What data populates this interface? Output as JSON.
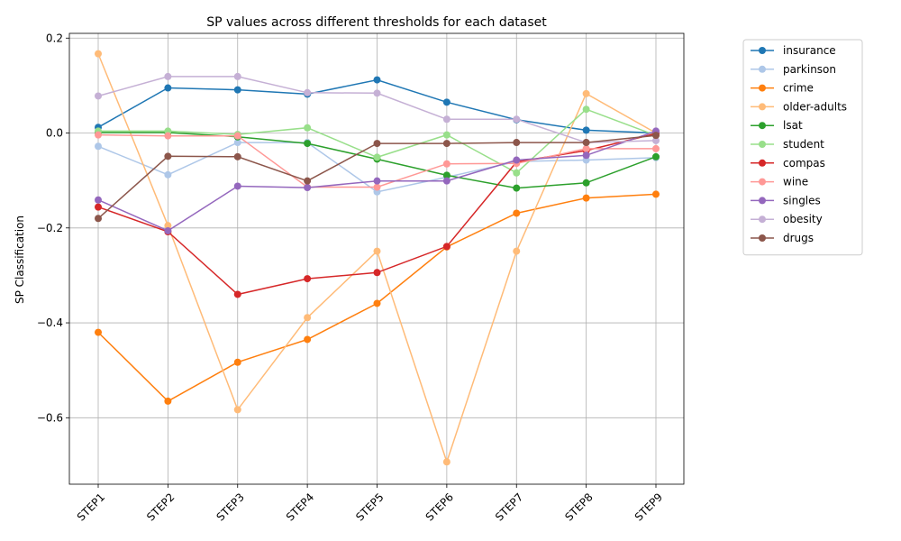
{
  "chart_data": {
    "type": "line",
    "title": "SP values across different thresholds for each dataset",
    "xlabel": "",
    "ylabel": "SP Classification",
    "categories": [
      "STEP1",
      "STEP2",
      "STEP3",
      "STEP4",
      "STEP5",
      "STEP6",
      "STEP7",
      "STEP8",
      "STEP9"
    ],
    "ylim": [
      -0.74,
      0.21
    ],
    "yticks": [
      0.2,
      0.0,
      -0.2,
      -0.4,
      -0.6
    ],
    "ytick_labels": [
      "0.2",
      "0.0",
      "−0.2",
      "−0.4",
      "−0.6"
    ],
    "grid": true,
    "legend_position": "outside-right",
    "series": [
      {
        "name": "insurance",
        "color": "#1f77b4",
        "values": [
          0.012,
          0.095,
          0.091,
          0.082,
          0.112,
          0.065,
          0.028,
          0.006,
          0.0
        ]
      },
      {
        "name": "parkinson",
        "color": "#aec7e8",
        "values": [
          -0.028,
          -0.088,
          -0.02,
          -0.02,
          -0.124,
          -0.093,
          -0.06,
          -0.057,
          -0.052
        ]
      },
      {
        "name": "crime",
        "color": "#ff7f0e",
        "values": [
          -0.42,
          -0.565,
          -0.483,
          -0.435,
          -0.359,
          -0.24,
          -0.169,
          -0.137,
          -0.129
        ]
      },
      {
        "name": "older-adults",
        "color": "#ffbb78",
        "values": [
          0.167,
          -0.195,
          -0.583,
          -0.389,
          -0.249,
          -0.693,
          -0.249,
          0.083,
          0.0
        ]
      },
      {
        "name": "lsat",
        "color": "#2ca02c",
        "values": [
          0.001,
          0.001,
          -0.008,
          -0.022,
          -0.055,
          -0.089,
          -0.116,
          -0.105,
          -0.05
        ]
      },
      {
        "name": "student",
        "color": "#98df8a",
        "values": [
          0.004,
          0.004,
          -0.003,
          0.011,
          -0.051,
          -0.004,
          -0.084,
          0.05,
          -0.005
        ]
      },
      {
        "name": "compas",
        "color": "#d62728",
        "values": [
          -0.156,
          -0.208,
          -0.34,
          -0.307,
          -0.294,
          -0.239,
          -0.061,
          -0.037,
          -0.001
        ]
      },
      {
        "name": "wine",
        "color": "#ff9896",
        "values": [
          -0.004,
          -0.006,
          -0.006,
          -0.114,
          -0.114,
          -0.065,
          -0.064,
          -0.033,
          -0.033
        ]
      },
      {
        "name": "singles",
        "color": "#9467bd",
        "values": [
          -0.141,
          -0.206,
          -0.112,
          -0.115,
          -0.101,
          -0.101,
          -0.057,
          -0.047,
          0.004
        ]
      },
      {
        "name": "obesity",
        "color": "#c5b0d5",
        "values": [
          0.078,
          0.119,
          0.119,
          0.085,
          0.084,
          0.029,
          0.029,
          -0.02,
          -0.016
        ]
      },
      {
        "name": "drugs",
        "color": "#8c564b",
        "values": [
          -0.18,
          -0.049,
          -0.05,
          -0.101,
          -0.022,
          -0.022,
          -0.02,
          -0.02,
          -0.005
        ]
      }
    ]
  }
}
